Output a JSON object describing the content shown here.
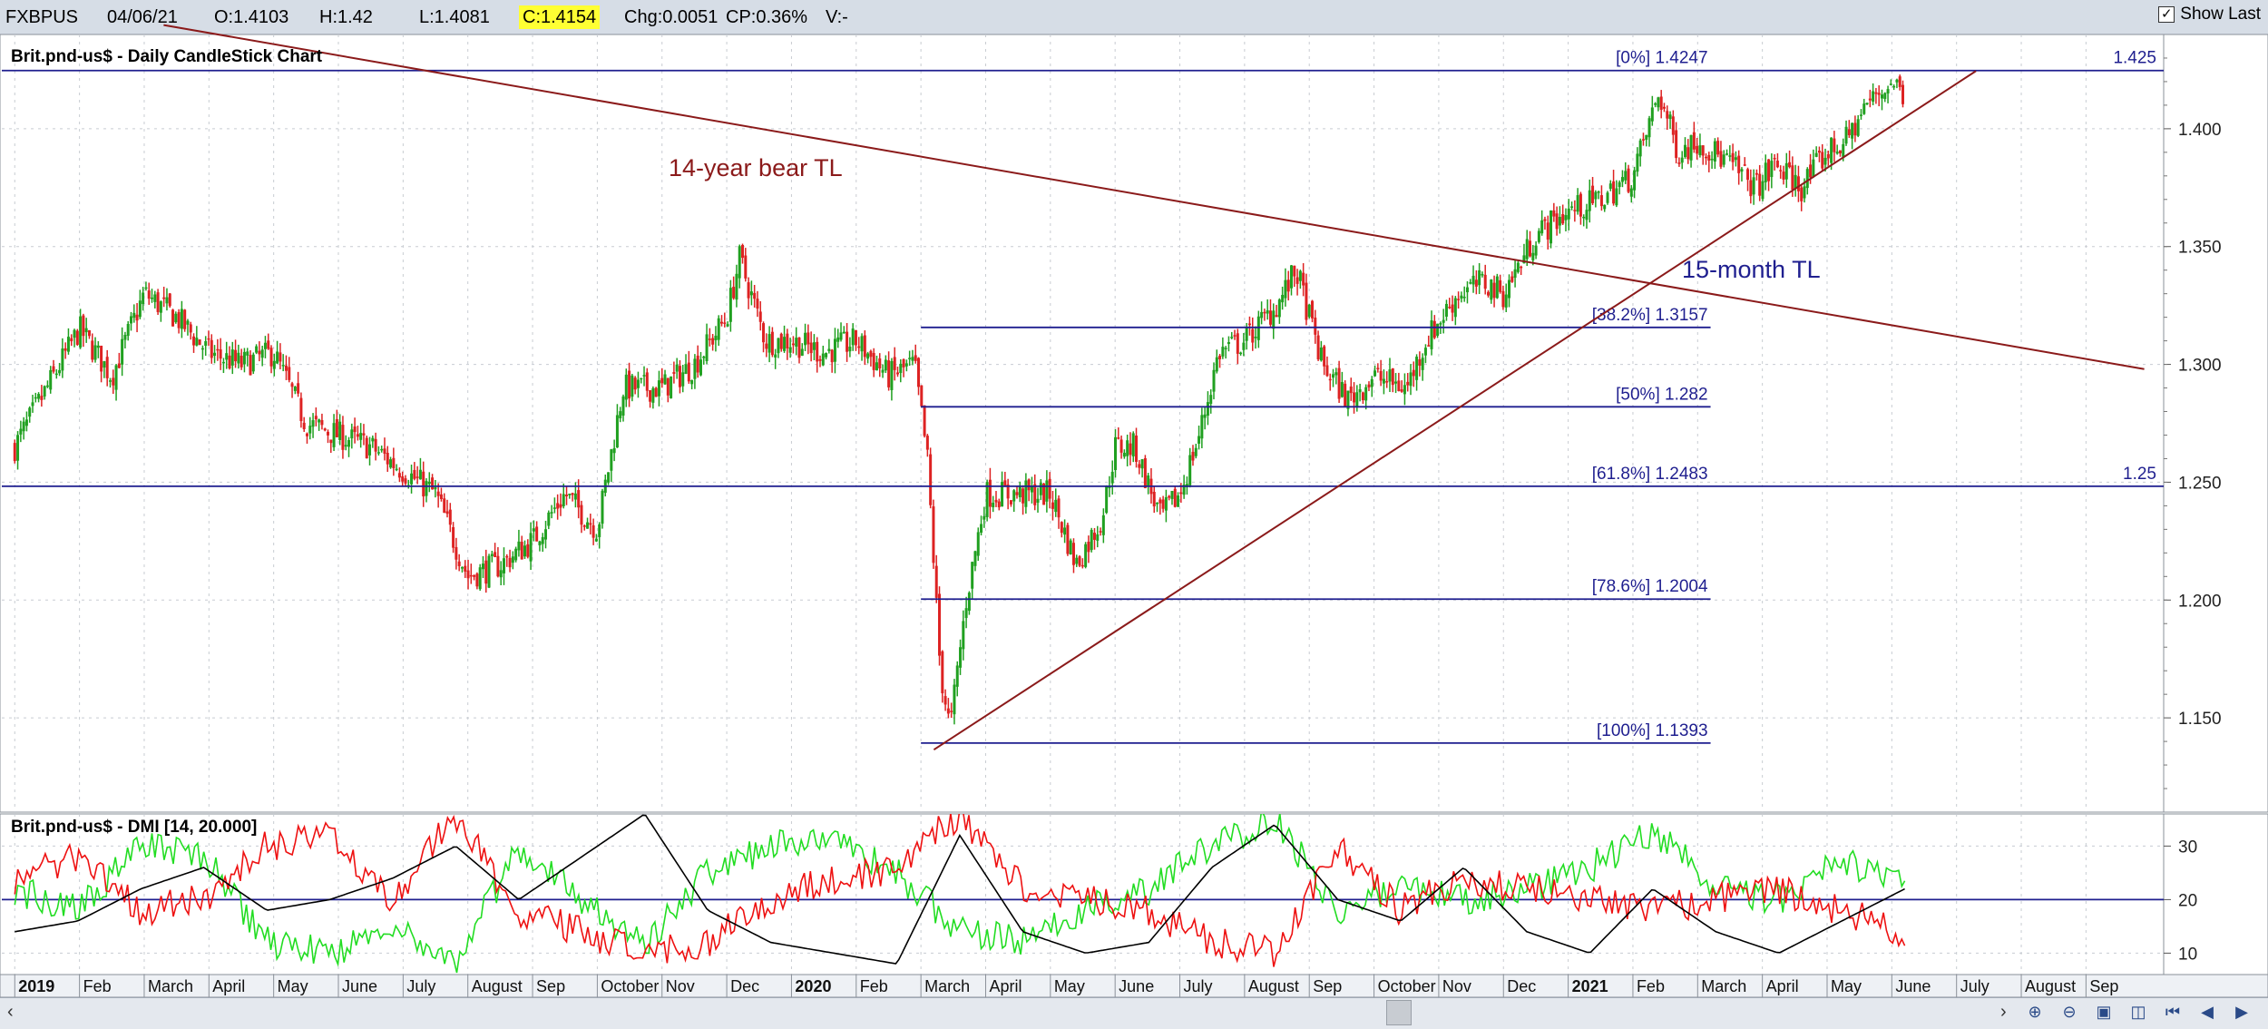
{
  "toolbar": {
    "symbol": "FXBPUS",
    "date": "04/06/21",
    "open": "O:1.4103",
    "high": "H:1.42",
    "low": "L:1.4081",
    "close": "C:1.4154",
    "change": "Chg:0.0051",
    "change_pct": "CP:0.36%",
    "volume": "V:-",
    "show_last_label": "Show Last",
    "show_last_checked": true
  },
  "colors": {
    "up_candle": "#20a020",
    "down_candle": "#dd2222",
    "fib_line": "#1f1f8f",
    "trendline": "#8b1a1a",
    "plus_di": "#22dd22",
    "minus_di": "#ee1111",
    "adx": "#000000",
    "toolbar_bg": "#d6dde6"
  },
  "chart_data": [
    {
      "type": "candlestick",
      "title": "Brit.pnd-us$ - Daily CandleStick Chart",
      "ylim": [
        1.11,
        1.44
      ],
      "y_ticks": [
        "1.150",
        "1.200",
        "1.250",
        "1.300",
        "1.350",
        "1.400"
      ],
      "x_month_labels": [
        "2019",
        "Feb",
        "March",
        "April",
        "May",
        "June",
        "July",
        "August",
        "Sep",
        "October",
        "Nov",
        "Dec",
        "2020",
        "Feb",
        "March",
        "April",
        "May",
        "June",
        "July",
        "August",
        "Sep",
        "October",
        "Nov",
        "Dec",
        "2021",
        "Feb",
        "March",
        "April",
        "May",
        "June",
        "July",
        "August",
        "Sep"
      ],
      "x_month_index": [
        0,
        1,
        2,
        3,
        4,
        5,
        6,
        7,
        8,
        9,
        10,
        11,
        12,
        13,
        14,
        15,
        16,
        17,
        18,
        19,
        20,
        21,
        22,
        23,
        24,
        25,
        26,
        27,
        28,
        29,
        30,
        31,
        32
      ],
      "x_range_months": [
        -0.2,
        33.2
      ],
      "close_path_anchors": [
        {
          "m": 0.0,
          "v": 1.265
        },
        {
          "m": 0.5,
          "v": 1.29
        },
        {
          "m": 1.0,
          "v": 1.315
        },
        {
          "m": 1.5,
          "v": 1.295
        },
        {
          "m": 2.0,
          "v": 1.33
        },
        {
          "m": 2.5,
          "v": 1.32
        },
        {
          "m": 3.0,
          "v": 1.305
        },
        {
          "m": 3.5,
          "v": 1.3
        },
        {
          "m": 4.0,
          "v": 1.305
        },
        {
          "m": 4.5,
          "v": 1.275
        },
        {
          "m": 5.0,
          "v": 1.27
        },
        {
          "m": 5.5,
          "v": 1.265
        },
        {
          "m": 6.0,
          "v": 1.255
        },
        {
          "m": 6.5,
          "v": 1.245
        },
        {
          "m": 7.0,
          "v": 1.21
        },
        {
          "m": 7.5,
          "v": 1.215
        },
        {
          "m": 8.0,
          "v": 1.225
        },
        {
          "m": 8.5,
          "v": 1.245
        },
        {
          "m": 9.0,
          "v": 1.23
        },
        {
          "m": 9.4,
          "v": 1.29
        },
        {
          "m": 10.0,
          "v": 1.29
        },
        {
          "m": 10.5,
          "v": 1.3
        },
        {
          "m": 11.0,
          "v": 1.32
        },
        {
          "m": 11.2,
          "v": 1.345
        },
        {
          "m": 11.6,
          "v": 1.31
        },
        {
          "m": 12.0,
          "v": 1.31
        },
        {
          "m": 12.5,
          "v": 1.305
        },
        {
          "m": 13.0,
          "v": 1.31
        },
        {
          "m": 13.5,
          "v": 1.295
        },
        {
          "m": 13.9,
          "v": 1.3
        },
        {
          "m": 14.1,
          "v": 1.26
        },
        {
          "m": 14.3,
          "v": 1.17
        },
        {
          "m": 14.45,
          "v": 1.145
        },
        {
          "m": 14.7,
          "v": 1.2
        },
        {
          "m": 15.0,
          "v": 1.245
        },
        {
          "m": 15.5,
          "v": 1.245
        },
        {
          "m": 16.0,
          "v": 1.245
        },
        {
          "m": 16.4,
          "v": 1.215
        },
        {
          "m": 16.8,
          "v": 1.235
        },
        {
          "m": 17.0,
          "v": 1.265
        },
        {
          "m": 17.3,
          "v": 1.265
        },
        {
          "m": 17.7,
          "v": 1.235
        },
        {
          "m": 18.0,
          "v": 1.245
        },
        {
          "m": 18.3,
          "v": 1.27
        },
        {
          "m": 18.6,
          "v": 1.305
        },
        {
          "m": 19.0,
          "v": 1.31
        },
        {
          "m": 19.5,
          "v": 1.325
        },
        {
          "m": 19.8,
          "v": 1.34
        },
        {
          "m": 20.2,
          "v": 1.3
        },
        {
          "m": 20.6,
          "v": 1.285
        },
        {
          "m": 21.0,
          "v": 1.295
        },
        {
          "m": 21.5,
          "v": 1.29
        },
        {
          "m": 21.8,
          "v": 1.31
        },
        {
          "m": 22.3,
          "v": 1.33
        },
        {
          "m": 22.7,
          "v": 1.335
        },
        {
          "m": 23.0,
          "v": 1.33
        },
        {
          "m": 23.5,
          "v": 1.355
        },
        {
          "m": 24.0,
          "v": 1.365
        },
        {
          "m": 24.5,
          "v": 1.37
        },
        {
          "m": 25.0,
          "v": 1.38
        },
        {
          "m": 25.4,
          "v": 1.415
        },
        {
          "m": 25.7,
          "v": 1.39
        },
        {
          "m": 26.0,
          "v": 1.395
        },
        {
          "m": 26.5,
          "v": 1.385
        },
        {
          "m": 26.9,
          "v": 1.375
        },
        {
          "m": 27.2,
          "v": 1.385
        },
        {
          "m": 27.6,
          "v": 1.375
        },
        {
          "m": 28.0,
          "v": 1.39
        },
        {
          "m": 28.3,
          "v": 1.395
        },
        {
          "m": 28.6,
          "v": 1.41
        },
        {
          "m": 29.0,
          "v": 1.42
        },
        {
          "m": 29.2,
          "v": 1.415
        }
      ],
      "last_date_month": 29.2,
      "fibonacci": [
        {
          "label": "[0%] 1.4247",
          "value": 1.4247,
          "from_month": -0.2,
          "to_month": 33.2,
          "right_label": "1.425"
        },
        {
          "label": "[38.2%] 1.3157",
          "value": 1.3157,
          "from_month": 14.0,
          "to_month": 26.2
        },
        {
          "label": "[50%] 1.282",
          "value": 1.282,
          "from_month": 14.0,
          "to_month": 26.2
        },
        {
          "label": "[61.8%] 1.2483",
          "value": 1.2483,
          "from_month": -0.2,
          "to_month": 33.2,
          "right_label": "1.25"
        },
        {
          "label": "[78.6%] 1.2004",
          "value": 1.2004,
          "from_month": 14.0,
          "to_month": 26.2
        },
        {
          "label": "[100%] 1.1393",
          "value": 1.1393,
          "from_month": 14.0,
          "to_month": 26.2
        }
      ],
      "trendlines": [
        {
          "label": "14-year bear TL",
          "from": {
            "m": 2.3,
            "v": 1.444
          },
          "to": {
            "m": 32.9,
            "v": 1.298
          }
        },
        {
          "label": "15-month TL",
          "from": {
            "m": 14.2,
            "v": 1.1365
          },
          "to": {
            "m": 30.3,
            "v": 1.4245
          }
        }
      ]
    },
    {
      "type": "line",
      "title": "Brit.pnd-us$ - DMI [14, 20.000]",
      "ylim": [
        6,
        36
      ],
      "y_ticks": [
        "10",
        "20",
        "30"
      ],
      "reference_line": 20,
      "series": [
        {
          "key": "plus_di",
          "values": [
            22,
            18,
            30,
            28,
            12,
            10,
            15,
            8,
            30,
            20,
            12,
            25,
            30,
            32,
            25,
            14,
            12,
            18,
            22,
            30,
            35,
            18,
            22,
            20,
            22,
            26,
            33,
            22,
            20,
            28,
            22
          ]
        },
        {
          "key": "minus_di",
          "values": [
            24,
            28,
            18,
            20,
            30,
            32,
            20,
            36,
            18,
            14,
            10,
            12,
            20,
            24,
            26,
            36,
            22,
            20,
            18,
            12,
            10,
            30,
            18,
            24,
            22,
            20,
            18,
            20,
            22,
            18,
            14
          ]
        },
        {
          "key": "adx",
          "values": [
            14,
            16,
            22,
            26,
            18,
            20,
            24,
            30,
            20,
            28,
            36,
            18,
            12,
            10,
            8,
            32,
            14,
            10,
            12,
            26,
            34,
            20,
            16,
            26,
            14,
            10,
            22,
            14,
            10,
            16,
            22
          ]
        }
      ]
    }
  ]
}
